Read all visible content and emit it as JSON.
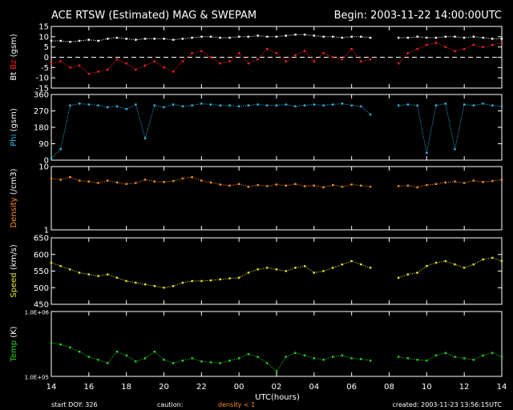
{
  "chart_data": {
    "type": "scatter",
    "title": "ACE RTSW (Estimated) MAG & SWEPAM",
    "begin_label": "Begin: 2003-11-22 14:00:00UTC",
    "xlabel": "UTC(hours)",
    "x_ticks": [
      "14",
      "16",
      "18",
      "20",
      "22",
      "00",
      "02",
      "04",
      "06",
      "08",
      "10",
      "12",
      "14"
    ],
    "footer": {
      "start_doy": "start DOY: 326",
      "caution": "caution:",
      "density_note": "density < 1",
      "created": "created: 2003-11-23 13:56:15UTC"
    },
    "colors": {
      "bt": "#ffffff",
      "bz": "#ff2020",
      "phi": "#30b8e8",
      "density": "#ff8c1a",
      "speed": "#e8e820",
      "temp": "#20d820",
      "axis": "#ffffff",
      "text": "#ffffff"
    },
    "panels": [
      {
        "id": "mag",
        "ylabel_parts": [
          {
            "text": "Bt",
            "color": "#ffffff"
          },
          {
            "text": "Bz",
            "color": "#ff2020"
          },
          {
            "text": "(gsm)",
            "color": "#ffffff"
          }
        ],
        "ylim": [
          -15,
          15
        ],
        "y_ticks": [
          {
            "v": 15,
            "label": "15"
          },
          {
            "v": 10,
            "label": "10"
          },
          {
            "v": 5,
            "label": "5"
          },
          {
            "v": 0,
            "label": "0"
          },
          {
            "v": -5,
            "label": "-5"
          },
          {
            "v": -10,
            "label": "-10"
          },
          {
            "v": -15,
            "label": "-15"
          }
        ],
        "zero_line": true,
        "series": [
          {
            "key": "bt",
            "name": "Bt",
            "color": "#ffffff",
            "x": [
              0,
              0.5,
              1,
              1.5,
              2,
              2.5,
              3,
              3.5,
              4,
              4.5,
              5,
              5.5,
              6,
              6.5,
              7,
              7.5,
              8,
              8.5,
              9,
              9.5,
              10,
              10.5,
              11,
              11.5,
              12,
              12.5,
              13,
              13.5,
              14,
              14.5,
              15,
              15.5,
              16,
              16.5,
              17,
              18.5,
              19,
              19.5,
              20,
              20.5,
              21,
              21.5,
              22,
              22.5,
              23,
              23.5,
              24
            ],
            "y": [
              8,
              8,
              7.5,
              8,
              8.5,
              8,
              9,
              9.5,
              9,
              8.5,
              9,
              9,
              9,
              8.5,
              9,
              9.5,
              10,
              10,
              9.5,
              9.5,
              10,
              10,
              10.5,
              10,
              10,
              10.5,
              11,
              11,
              10.5,
              10,
              10,
              9.5,
              10,
              10,
              9.5,
              9.5,
              9.5,
              10,
              9.5,
              9.5,
              10,
              10,
              9.5,
              10,
              9.5,
              9,
              9
            ]
          },
          {
            "key": "bz",
            "name": "Bz",
            "color": "#ff2020",
            "x": [
              0,
              0.5,
              1,
              1.5,
              2,
              2.5,
              3,
              3.5,
              4,
              4.5,
              5,
              5.5,
              6,
              6.5,
              7,
              7.5,
              8,
              8.5,
              9,
              9.5,
              10,
              10.5,
              11,
              11.5,
              12,
              12.5,
              13,
              13.5,
              14,
              14.5,
              15,
              15.5,
              16,
              16.5,
              17,
              18.5,
              19,
              19.5,
              20,
              20.5,
              21,
              21.5,
              22,
              22.5,
              23,
              23.5,
              24
            ],
            "y": [
              -3,
              -2,
              -5,
              -4,
              -8,
              -7,
              -6,
              -1,
              -3,
              -6,
              -4,
              -2,
              -5,
              -7,
              -2,
              2,
              3,
              0,
              -3,
              -2,
              2,
              -3,
              -1,
              4,
              2,
              -2,
              1,
              3,
              -2,
              2,
              0,
              -1,
              4,
              -2,
              -1,
              -3,
              2,
              4,
              6,
              7,
              5,
              3,
              4,
              6,
              5,
              6,
              7
            ]
          }
        ]
      },
      {
        "id": "phi",
        "ylabel_parts": [
          {
            "text": "Phi",
            "color": "#30b8e8"
          },
          {
            "text": "(gsm)",
            "color": "#ffffff"
          }
        ],
        "ylim": [
          0,
          360
        ],
        "y_ticks": [
          {
            "v": 360,
            "label": "360"
          },
          {
            "v": 270,
            "label": "270"
          },
          {
            "v": 180,
            "label": "180"
          },
          {
            "v": 90,
            "label": "90"
          },
          {
            "v": 0,
            "label": "0"
          }
        ],
        "series": [
          {
            "key": "phi",
            "name": "Phi",
            "color": "#30b8e8",
            "x": [
              0,
              0.5,
              1,
              1.5,
              2,
              2.5,
              3,
              3.5,
              4,
              4.5,
              5,
              5.5,
              6,
              6.5,
              7,
              7.5,
              8,
              8.5,
              9,
              9.5,
              10,
              10.5,
              11,
              11.5,
              12,
              12.5,
              13,
              13.5,
              14,
              14.5,
              15,
              15.5,
              16,
              16.5,
              17,
              18.5,
              19,
              19.5,
              20,
              20.5,
              21,
              21.5,
              22,
              22.5,
              23,
              23.5,
              24
            ],
            "y": [
              10,
              60,
              300,
              310,
              305,
              300,
              290,
              295,
              280,
              305,
              120,
              300,
              290,
              305,
              295,
              300,
              310,
              305,
              300,
              300,
              295,
              300,
              305,
              300,
              300,
              305,
              295,
              300,
              305,
              300,
              305,
              310,
              300,
              295,
              250,
              300,
              305,
              300,
              40,
              300,
              310,
              60,
              305,
              300,
              310,
              300,
              295
            ]
          }
        ]
      },
      {
        "id": "density",
        "ylabel_parts": [
          {
            "text": "Density",
            "color": "#ff8c1a"
          },
          {
            "text": "(/cm3)",
            "color": "#ffffff"
          }
        ],
        "scale": "log",
        "ylim": [
          1,
          10
        ],
        "y_ticks": [
          {
            "v": 10,
            "label": "10"
          },
          {
            "v": 1,
            "label": "1"
          }
        ],
        "series": [
          {
            "key": "density",
            "name": "Density",
            "color": "#ff8c1a",
            "x": [
              0,
              0.5,
              1,
              1.5,
              2,
              2.5,
              3,
              3.5,
              4,
              4.5,
              5,
              5.5,
              6,
              6.5,
              7,
              7.5,
              8,
              8.5,
              9,
              9.5,
              10,
              10.5,
              11,
              11.5,
              12,
              12.5,
              13,
              13.5,
              14,
              14.5,
              15,
              15.5,
              16,
              16.5,
              17,
              18.5,
              19,
              19.5,
              20,
              20.5,
              21,
              21.5,
              22,
              22.5,
              23,
              23.5,
              24
            ],
            "y": [
              6.5,
              6.2,
              6.8,
              6.0,
              5.8,
              5.5,
              6.0,
              5.6,
              5.3,
              5.5,
              6.2,
              5.8,
              5.7,
              5.9,
              6.5,
              6.8,
              6.0,
              5.6,
              5.2,
              5.0,
              5.3,
              4.8,
              5.1,
              4.9,
              5.2,
              5.0,
              5.3,
              4.9,
              5.0,
              4.7,
              5.1,
              4.8,
              5.2,
              5.0,
              4.8,
              4.9,
              5.0,
              4.7,
              5.1,
              5.3,
              5.6,
              5.8,
              5.5,
              6.0,
              5.7,
              5.9,
              6.2
            ]
          }
        ]
      },
      {
        "id": "speed",
        "ylabel_parts": [
          {
            "text": "Speed",
            "color": "#e8e820"
          },
          {
            "text": "(km/s)",
            "color": "#ffffff"
          }
        ],
        "ylim": [
          450,
          650
        ],
        "y_ticks": [
          {
            "v": 650,
            "label": "650"
          },
          {
            "v": 600,
            "label": "600"
          },
          {
            "v": 550,
            "label": "550"
          },
          {
            "v": 500,
            "label": "500"
          },
          {
            "v": 450,
            "label": "450"
          }
        ],
        "series": [
          {
            "key": "speed",
            "name": "Speed",
            "color": "#e8e820",
            "x": [
              0,
              0.5,
              1,
              1.5,
              2,
              2.5,
              3,
              3.5,
              4,
              4.5,
              5,
              5.5,
              6,
              6.5,
              7,
              7.5,
              8,
              8.5,
              9,
              9.5,
              10,
              10.5,
              11,
              11.5,
              12,
              12.5,
              13,
              13.5,
              14,
              14.5,
              15,
              15.5,
              16,
              16.5,
              17,
              18.5,
              19,
              19.5,
              20,
              20.5,
              21,
              21.5,
              22,
              22.5,
              23,
              23.5,
              24
            ],
            "y": [
              575,
              565,
              555,
              545,
              540,
              535,
              540,
              530,
              520,
              515,
              510,
              505,
              500,
              505,
              515,
              520,
              520,
              522,
              525,
              528,
              530,
              545,
              555,
              560,
              555,
              550,
              560,
              565,
              545,
              550,
              560,
              570,
              580,
              570,
              560,
              530,
              540,
              545,
              565,
              575,
              580,
              570,
              560,
              570,
              585,
              590,
              580
            ]
          }
        ]
      },
      {
        "id": "temp",
        "ylabel_parts": [
          {
            "text": "Temp",
            "color": "#20d820"
          },
          {
            "text": "(K)",
            "color": "#ffffff"
          }
        ],
        "scale": "log",
        "ylim": [
          100000,
          1000000
        ],
        "y_ticks": [
          {
            "v": 1000000,
            "label": "1.0E+06"
          },
          {
            "v": 100000,
            "label": "1.0E+05"
          }
        ],
        "series": [
          {
            "key": "temp",
            "name": "Temp",
            "color": "#20d820",
            "x": [
              0,
              0.5,
              1,
              1.5,
              2,
              2.5,
              3,
              3.5,
              4,
              4.5,
              5,
              5.5,
              6,
              6.5,
              7,
              7.5,
              8,
              8.5,
              9,
              9.5,
              10,
              10.5,
              11,
              11.5,
              12,
              12.5,
              13,
              13.5,
              14,
              14.5,
              15,
              15.5,
              16,
              16.5,
              17,
              18.5,
              19,
              19.5,
              20,
              20.5,
              21,
              21.5,
              22,
              22.5,
              23,
              23.5,
              24
            ],
            "y": [
              330000,
              310000,
              280000,
              240000,
              200000,
              180000,
              160000,
              240000,
              210000,
              170000,
              190000,
              240000,
              180000,
              160000,
              175000,
              190000,
              170000,
              165000,
              160000,
              175000,
              190000,
              220000,
              200000,
              160000,
              120000,
              200000,
              230000,
              210000,
              190000,
              180000,
              200000,
              210000,
              190000,
              185000,
              175000,
              200000,
              190000,
              180000,
              175000,
              210000,
              230000,
              200000,
              190000,
              180000,
              210000,
              230000,
              200000
            ]
          }
        ]
      }
    ]
  }
}
